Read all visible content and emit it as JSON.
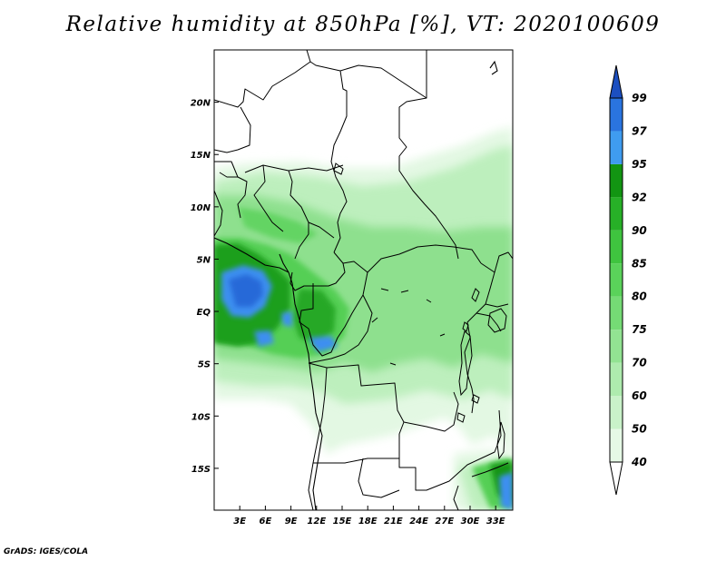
{
  "title": "Relative humidity at 850hPa [%], VT: 2020100609",
  "credit": "GrADS: IGES/COLA",
  "map": {
    "lon_range": [
      0,
      35
    ],
    "lat_range": [
      -19,
      25
    ],
    "lon_ticks": [
      {
        "lon": 3,
        "label": "3E"
      },
      {
        "lon": 6,
        "label": "6E"
      },
      {
        "lon": 9,
        "label": "9E"
      },
      {
        "lon": 12,
        "label": "12E"
      },
      {
        "lon": 15,
        "label": "15E"
      },
      {
        "lon": 18,
        "label": "18E"
      },
      {
        "lon": 21,
        "label": "21E"
      },
      {
        "lon": 24,
        "label": "24E"
      },
      {
        "lon": 27,
        "label": "27E"
      },
      {
        "lon": 30,
        "label": "30E"
      },
      {
        "lon": 33,
        "label": "33E"
      }
    ],
    "lat_ticks": [
      {
        "lat": 20,
        "label": "20N"
      },
      {
        "lat": 15,
        "label": "15N"
      },
      {
        "lat": 10,
        "label": "10N"
      },
      {
        "lat": 5,
        "label": "5N"
      },
      {
        "lat": 0,
        "label": "EQ"
      },
      {
        "lat": -5,
        "label": "5S"
      },
      {
        "lat": -10,
        "label": "10S"
      },
      {
        "lat": -15,
        "label": "15S"
      }
    ]
  },
  "colorbar": {
    "levels": [
      "40",
      "50",
      "60",
      "70",
      "75",
      "80",
      "85",
      "90",
      "92",
      "95",
      "97",
      "99"
    ],
    "colors": [
      "#e6f9e6",
      "#c9f2c9",
      "#aeebae",
      "#92e392",
      "#75db75",
      "#5ad25a",
      "#3fc43f",
      "#27b027",
      "#129512",
      "#3f9cf0",
      "#2a74df",
      "#1c4fc0"
    ],
    "over_color": "#1c4fc0",
    "under_color": "#ffffff"
  }
}
